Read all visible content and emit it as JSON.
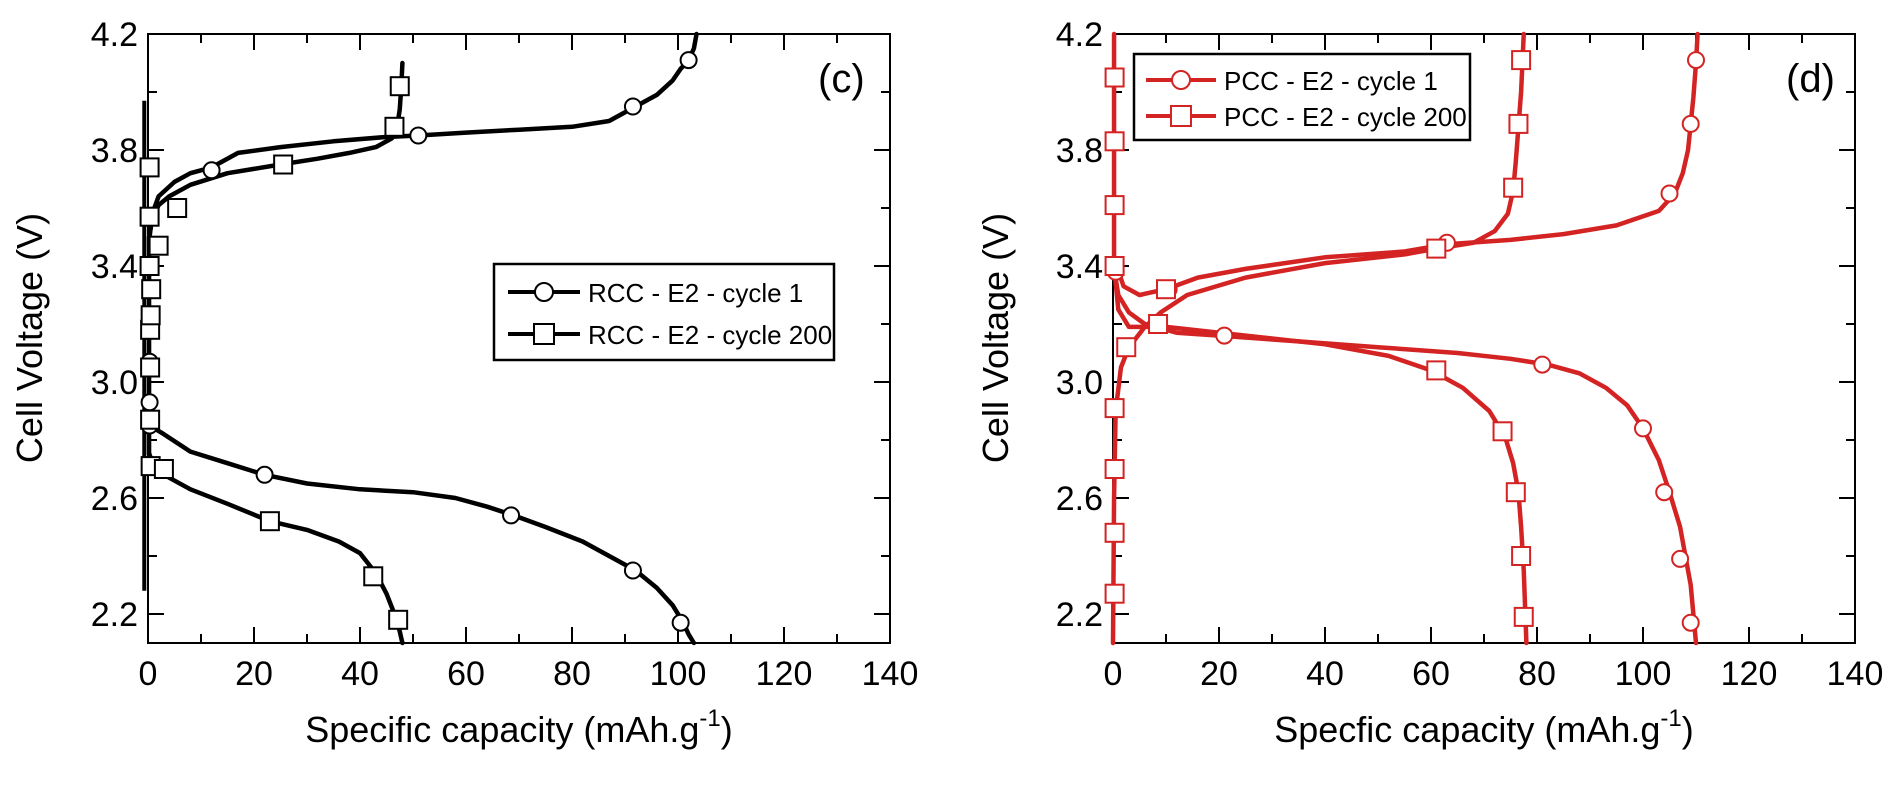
{
  "chart_data": [
    {
      "type": "line",
      "panel_label": "(c)",
      "color": "#000000",
      "xlabel": "Specific capacity (mAh.g",
      "xlabel_sup": "-1",
      "xlabel_end": ")",
      "ylabel": "Cell Voltage (V)",
      "xlim": [
        0,
        140
      ],
      "ylim": [
        2.1,
        4.2
      ],
      "xticks": [
        0,
        20,
        40,
        60,
        80,
        100,
        120,
        140
      ],
      "yticks": [
        2.2,
        2.6,
        3.0,
        3.4,
        3.8,
        4.2
      ],
      "xtick_labels": [
        "0",
        "20",
        "40",
        "60",
        "80",
        "100",
        "120",
        "140"
      ],
      "ytick_labels": [
        "2.2",
        "2.6",
        "3.0",
        "3.4",
        "3.8",
        "4.2"
      ],
      "legend_position": "center-right",
      "series": [
        {
          "name": "RCC - E2 - cycle 1",
          "marker": "circle",
          "segments": [
            [
              [
                0.3,
                2.85
              ],
              [
                3,
                2.82
              ],
              [
                8,
                2.76
              ],
              [
                15,
                2.72
              ],
              [
                22,
                2.68
              ],
              [
                30,
                2.65
              ],
              [
                40,
                2.63
              ],
              [
                50,
                2.62
              ],
              [
                58,
                2.6
              ],
              [
                64,
                2.57
              ],
              [
                69,
                2.54
              ],
              [
                75,
                2.5
              ],
              [
                82,
                2.45
              ],
              [
                88,
                2.39
              ],
              [
                92,
                2.35
              ],
              [
                96,
                2.29
              ],
              [
                99,
                2.23
              ],
              [
                101,
                2.17
              ],
              [
                102,
                2.13
              ],
              [
                103,
                2.1
              ]
            ],
            [
              [
                0.3,
                3.5
              ],
              [
                0.8,
                3.58
              ],
              [
                2,
                3.64
              ],
              [
                5,
                3.69
              ],
              [
                8,
                3.72
              ],
              [
                12,
                3.74
              ],
              [
                17,
                3.79
              ],
              [
                25,
                3.81
              ],
              [
                35,
                3.83
              ],
              [
                45,
                3.845
              ],
              [
                51,
                3.85
              ],
              [
                60,
                3.86
              ],
              [
                70,
                3.87
              ],
              [
                80,
                3.88
              ],
              [
                87,
                3.9
              ],
              [
                92,
                3.95
              ],
              [
                96,
                3.99
              ],
              [
                99,
                4.04
              ],
              [
                100.5,
                4.08
              ],
              [
                102,
                4.11
              ],
              [
                103,
                4.15
              ],
              [
                103.5,
                4.2
              ]
            ]
          ],
          "markers": [
            [
              0.3,
              2.85
            ],
            [
              22,
              2.68
            ],
            [
              68.5,
              2.54
            ],
            [
              91.5,
              2.35
            ],
            [
              100.5,
              2.17
            ],
            [
              0.3,
              2.93
            ],
            [
              0.3,
              3.07
            ],
            [
              12,
              3.73
            ],
            [
              51,
              3.85
            ],
            [
              91.5,
              3.95
            ],
            [
              102,
              4.11
            ]
          ]
        },
        {
          "name": "RCC - E2 - cycle 200",
          "marker": "square",
          "segments": [
            [
              [
                0.3,
                2.75
              ],
              [
                1,
                2.71
              ],
              [
                3,
                2.68
              ],
              [
                8,
                2.63
              ],
              [
                15,
                2.58
              ],
              [
                23,
                2.52
              ],
              [
                30,
                2.49
              ],
              [
                36,
                2.45
              ],
              [
                40,
                2.41
              ],
              [
                43,
                2.34
              ],
              [
                45,
                2.27
              ],
              [
                46.5,
                2.2
              ],
              [
                47.5,
                2.14
              ],
              [
                48,
                2.1
              ]
            ],
            [
              [
                0.2,
                2.75
              ],
              [
                0.2,
                3.5
              ],
              [
                0.8,
                3.56
              ],
              [
                2,
                3.61
              ],
              [
                4,
                3.64
              ],
              [
                8,
                3.68
              ],
              [
                15,
                3.72
              ],
              [
                25,
                3.75
              ],
              [
                32,
                3.77
              ],
              [
                38,
                3.79
              ],
              [
                43,
                3.81
              ],
              [
                46,
                3.84
              ],
              [
                47,
                3.88
              ],
              [
                47.5,
                3.94
              ],
              [
                47.8,
                4.02
              ],
              [
                48,
                4.1
              ]
            ]
          ],
          "markers": [
            [
              0.5,
              2.71
            ],
            [
              3,
              2.7
            ],
            [
              23,
              2.52
            ],
            [
              42.5,
              2.33
            ],
            [
              47.2,
              2.18
            ],
            [
              0.4,
              2.87
            ],
            [
              0.4,
              3.05
            ],
            [
              0.4,
              3.18
            ],
            [
              0.5,
              3.23
            ],
            [
              0.6,
              3.32
            ],
            [
              0.3,
              3.4
            ],
            [
              2,
              3.47
            ],
            [
              0.3,
              3.57
            ],
            [
              5.5,
              3.6
            ],
            [
              25.5,
              3.75
            ],
            [
              0.3,
              3.74
            ],
            [
              46.5,
              3.88
            ],
            [
              47.5,
              4.02
            ]
          ]
        }
      ],
      "extra_line": {
        "name": "",
        "points": [
          [
            -0.7,
            2.28
          ],
          [
            -0.7,
            3.97
          ]
        ]
      }
    },
    {
      "type": "line",
      "panel_label": "(d)",
      "color": "#d42323",
      "xlabel": "Specfic capacity (mAh.g",
      "xlabel_sup": "-1",
      "xlabel_end": ")",
      "ylabel": "Cell Voltage (V)",
      "xlim": [
        0,
        140
      ],
      "ylim": [
        2.1,
        4.2
      ],
      "xticks": [
        0,
        20,
        40,
        60,
        80,
        100,
        120,
        140
      ],
      "yticks": [
        2.2,
        2.6,
        3.0,
        3.4,
        3.8,
        4.2
      ],
      "xtick_labels": [
        "0",
        "20",
        "40",
        "60",
        "80",
        "100",
        "120",
        "140"
      ],
      "ytick_labels": [
        "2.2",
        "2.6",
        "3.0",
        "3.4",
        "3.8",
        "4.2"
      ],
      "legend_position": "top-left",
      "series": [
        {
          "name": "PCC - E2 - cycle 1",
          "marker": "circle",
          "segments": [
            [
              [
                0.3,
                3.38
              ],
              [
                1,
                3.3
              ],
              [
                3,
                3.24
              ],
              [
                6,
                3.2
              ],
              [
                12,
                3.17
              ],
              [
                20,
                3.16
              ],
              [
                35,
                3.14
              ],
              [
                50,
                3.12
              ],
              [
                65,
                3.1
              ],
              [
                75,
                3.08
              ],
              [
                82,
                3.06
              ],
              [
                88,
                3.03
              ],
              [
                93,
                2.98
              ],
              [
                97,
                2.92
              ],
              [
                100,
                2.84
              ],
              [
                103,
                2.73
              ],
              [
                105,
                2.62
              ],
              [
                107,
                2.5
              ],
              [
                108,
                2.4
              ],
              [
                109,
                2.3
              ],
              [
                109.5,
                2.2
              ],
              [
                110,
                2.1
              ]
            ],
            [
              [
                0.3,
                3.42
              ],
              [
                2,
                3.33
              ],
              [
                5,
                3.3
              ],
              [
                10,
                3.32
              ],
              [
                16,
                3.36
              ],
              [
                25,
                3.39
              ],
              [
                40,
                3.43
              ],
              [
                55,
                3.45
              ],
              [
                63,
                3.475
              ],
              [
                75,
                3.49
              ],
              [
                85,
                3.51
              ],
              [
                95,
                3.54
              ],
              [
                103,
                3.59
              ],
              [
                106,
                3.65
              ],
              [
                107.5,
                3.72
              ],
              [
                108.5,
                3.8
              ],
              [
                109,
                3.89
              ],
              [
                109.5,
                3.98
              ],
              [
                110,
                4.1
              ],
              [
                110.3,
                4.2
              ]
            ]
          ],
          "markers": [
            [
              0.5,
              3.38
            ],
            [
              21,
              3.16
            ],
            [
              81,
              3.06
            ],
            [
              100,
              2.84
            ],
            [
              104,
              2.62
            ],
            [
              107,
              2.39
            ],
            [
              109,
              2.17
            ],
            [
              10.5,
              3.32
            ],
            [
              63,
              3.48
            ],
            [
              105,
              3.65
            ],
            [
              109,
              3.89
            ],
            [
              110,
              4.11
            ]
          ]
        },
        {
          "name": "PCC - E2 - cycle 200",
          "marker": "square",
          "segments": [
            [
              [
                0.2,
                4.2
              ],
              [
                0.2,
                3.4
              ],
              [
                1,
                3.25
              ],
              [
                3,
                3.19
              ],
              [
                10,
                3.19
              ],
              [
                25,
                3.16
              ],
              [
                40,
                3.13
              ],
              [
                52,
                3.09
              ],
              [
                60,
                3.04
              ],
              [
                66,
                2.98
              ],
              [
                71,
                2.9
              ],
              [
                74,
                2.81
              ],
              [
                75.5,
                2.72
              ],
              [
                76.5,
                2.62
              ],
              [
                77,
                2.5
              ],
              [
                77.5,
                2.35
              ],
              [
                77.8,
                2.2
              ],
              [
                78,
                2.1
              ]
            ],
            [
              [
                0,
                2.1
              ],
              [
                0.2,
                2.6
              ],
              [
                0.5,
                2.9
              ],
              [
                1.5,
                3.05
              ],
              [
                3,
                3.12
              ],
              [
                6,
                3.19
              ],
              [
                9,
                3.24
              ],
              [
                14,
                3.3
              ],
              [
                25,
                3.36
              ],
              [
                40,
                3.41
              ],
              [
                55,
                3.44
              ],
              [
                61,
                3.46
              ],
              [
                68,
                3.48
              ],
              [
                72,
                3.52
              ],
              [
                74.5,
                3.58
              ],
              [
                75.5,
                3.66
              ],
              [
                76,
                3.76
              ],
              [
                76.5,
                3.88
              ],
              [
                77,
                4.0
              ],
              [
                77.5,
                4.2
              ]
            ]
          ],
          "markers": [
            [
              0.3,
              2.27
            ],
            [
              0.3,
              2.48
            ],
            [
              0.3,
              2.7
            ],
            [
              0.3,
              2.91
            ],
            [
              0.3,
              4.05
            ],
            [
              0.3,
              3.83
            ],
            [
              0.3,
              3.61
            ],
            [
              0.3,
              3.4
            ],
            [
              2.5,
              3.12
            ],
            [
              8.5,
              3.2
            ],
            [
              10,
              3.32
            ],
            [
              61,
              3.04
            ],
            [
              61,
              3.46
            ],
            [
              73.5,
              2.83
            ],
            [
              76,
              2.62
            ],
            [
              77,
              2.4
            ],
            [
              77.5,
              2.19
            ],
            [
              75.5,
              3.67
            ],
            [
              76.5,
              3.89
            ],
            [
              77,
              4.11
            ]
          ]
        }
      ]
    }
  ]
}
